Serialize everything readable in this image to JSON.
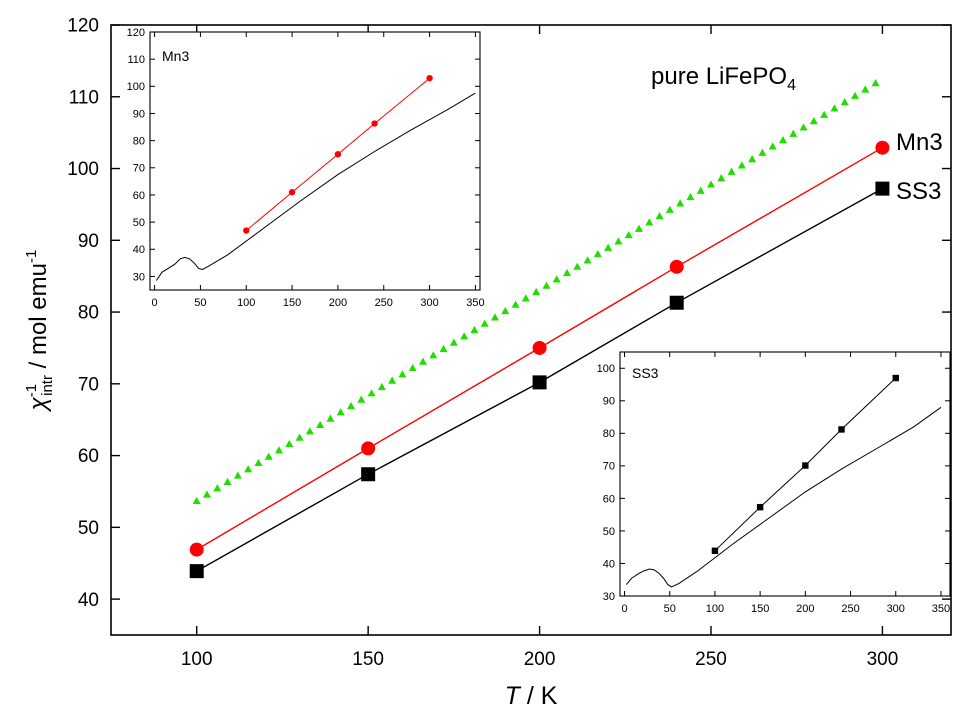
{
  "chart_data": [
    {
      "type": "line",
      "name": "main",
      "xlabel": "T / K",
      "ylabel": "χ-1intr / mol emu-1",
      "ylabel_parts": {
        "chi": "χ",
        "sup": "-1",
        "sub": "intr",
        "rest": " / mol emu",
        "unit_sup": "-1"
      },
      "xlabel_parts": {
        "var": "T",
        "rest": " / K"
      },
      "xlim": [
        75,
        320
      ],
      "ylim": [
        35,
        120
      ],
      "xticks": [
        100,
        150,
        200,
        250,
        300
      ],
      "yticks": [
        40,
        50,
        60,
        70,
        80,
        90,
        100,
        110,
        120
      ],
      "grid": false,
      "series": [
        {
          "name": "pure LiFePO4",
          "label_parts": {
            "base": "pure LiFePO",
            "sub": "4"
          },
          "color": "#22dd00",
          "marker": "triangle",
          "line": {
            "x0": 100,
            "y0": 53.7,
            "x1": 300,
            "y1": 112.5,
            "step": 3
          }
        },
        {
          "name": "Mn3",
          "color": "#ff0000",
          "marker": "circle",
          "x": [
            100,
            150,
            200,
            240,
            300
          ],
          "y": [
            46.9,
            61.0,
            75.0,
            86.3,
            102.9
          ]
        },
        {
          "name": "SS3",
          "color": "#000000",
          "marker": "square",
          "x": [
            100,
            150,
            200,
            240,
            300
          ],
          "y": [
            43.9,
            57.4,
            70.2,
            81.3,
            97.2
          ]
        }
      ]
    },
    {
      "type": "line",
      "name": "inset-mn3",
      "title": "Mn3",
      "xlim": [
        -5,
        355
      ],
      "ylim": [
        25,
        120
      ],
      "xticks": [
        0,
        50,
        100,
        150,
        200,
        250,
        300,
        350
      ],
      "yticks": [
        30,
        40,
        50,
        60,
        70,
        80,
        90,
        100,
        110,
        120
      ],
      "series": [
        {
          "name": "Mn3",
          "color": "#ff0000",
          "marker": "circle",
          "x": [
            100,
            150,
            200,
            240,
            300
          ],
          "y": [
            46.9,
            61.0,
            75.0,
            86.3,
            103.0
          ]
        },
        {
          "name": "pure",
          "color": "#000000",
          "marker": "none",
          "x": [
            2,
            8,
            15,
            22,
            28,
            33,
            38,
            43,
            48,
            52,
            60,
            80,
            120,
            160,
            200,
            240,
            280,
            320,
            350
          ],
          "y": [
            28.5,
            31.5,
            33.0,
            34.5,
            36.5,
            37.0,
            36.5,
            35.0,
            33.0,
            32.5,
            34.0,
            38.0,
            48.0,
            58.0,
            67.5,
            76.0,
            84.0,
            91.5,
            97.5
          ]
        }
      ]
    },
    {
      "type": "line",
      "name": "inset-ss3",
      "title": "SS3",
      "xlim": [
        -5,
        360
      ],
      "ylim": [
        30,
        105
      ],
      "xticks": [
        0,
        50,
        100,
        150,
        200,
        250,
        300,
        350
      ],
      "yticks": [
        30,
        40,
        50,
        60,
        70,
        80,
        90,
        100
      ],
      "series": [
        {
          "name": "SS3",
          "color": "#000000",
          "marker": "square",
          "x": [
            100,
            150,
            200,
            240,
            300
          ],
          "y": [
            43.9,
            57.3,
            70.1,
            81.2,
            97.0
          ]
        },
        {
          "name": "pure",
          "color": "#000000",
          "marker": "none",
          "x": [
            2,
            8,
            15,
            22,
            28,
            33,
            38,
            43,
            48,
            52,
            60,
            80,
            120,
            160,
            200,
            240,
            280,
            320,
            350
          ],
          "y": [
            33.5,
            35.5,
            36.8,
            37.8,
            38.3,
            38.0,
            37.0,
            35.5,
            33.5,
            32.8,
            33.8,
            37.5,
            46.0,
            54.0,
            62.0,
            69.0,
            75.5,
            82.0,
            88.0
          ]
        }
      ]
    }
  ]
}
